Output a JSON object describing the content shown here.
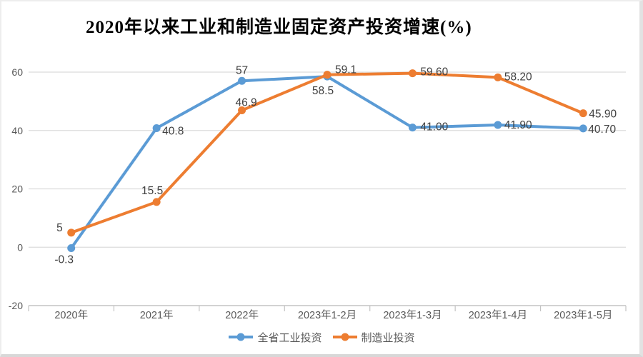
{
  "page": {
    "background": "#ffffff",
    "border_color": "#e2e2e2"
  },
  "chart_data": {
    "type": "line",
    "title": "2020年以来工业和制造业固定资产投资增速(%)",
    "categories": [
      "2020年",
      "2021年",
      "2022年",
      "2023年1-2月",
      "2023年1-3月",
      "2023年1-4月",
      "2023年1-5月"
    ],
    "series": [
      {
        "name": "全省工业投资",
        "color": "#5B9BD5",
        "values": [
          -0.3,
          40.8,
          57,
          58.5,
          41.0,
          41.9,
          40.7
        ],
        "point_labels": [
          "-0.3",
          "40.8",
          "57",
          "58.5",
          "41.00",
          "41.90",
          "40.70"
        ],
        "label_placements": [
          {
            "dx": -10,
            "dy": 21,
            "anchor": "middle"
          },
          {
            "dx": 8,
            "dy": 9,
            "anchor": "start"
          },
          {
            "dx": 0,
            "dy": -10,
            "anchor": "middle"
          },
          {
            "dx": -6,
            "dy": 25,
            "anchor": "middle"
          },
          {
            "dx": 11,
            "dy": 4,
            "anchor": "start"
          },
          {
            "dx": 9,
            "dy": 5,
            "anchor": "start"
          },
          {
            "dx": 7,
            "dy": 6,
            "anchor": "start"
          }
        ]
      },
      {
        "name": "制造业投资",
        "color": "#ED7D31",
        "values": [
          5,
          15.5,
          46.9,
          59.1,
          59.6,
          58.2,
          45.9
        ],
        "point_labels": [
          "5",
          "15.5",
          "46.9",
          "59.1",
          "59.60",
          "58.20",
          "45.90"
        ],
        "label_placements": [
          {
            "dx": -12,
            "dy": -2,
            "anchor": "end"
          },
          {
            "dx": -6,
            "dy": -11,
            "anchor": "middle"
          },
          {
            "dx": 6,
            "dy": -6,
            "anchor": "middle"
          },
          {
            "dx": 11,
            "dy": -2,
            "anchor": "start"
          },
          {
            "dx": 11,
            "dy": 3,
            "anchor": "start"
          },
          {
            "dx": 9,
            "dy": 4,
            "anchor": "start"
          },
          {
            "dx": 8,
            "dy": 6,
            "anchor": "start"
          }
        ]
      }
    ],
    "y_axis": {
      "min": -20,
      "max": 60,
      "step": 20,
      "tick_labels": [
        "-20",
        "0",
        "20",
        "40",
        "60"
      ]
    },
    "grid": true,
    "legend_position": "bottom",
    "styles": {
      "grid_color": "#dcdcdc",
      "axis_color": "#c3c3c3",
      "tick_label_color": "#595959",
      "data_label_color": "#404040",
      "legend_label_color": "#595959"
    }
  }
}
